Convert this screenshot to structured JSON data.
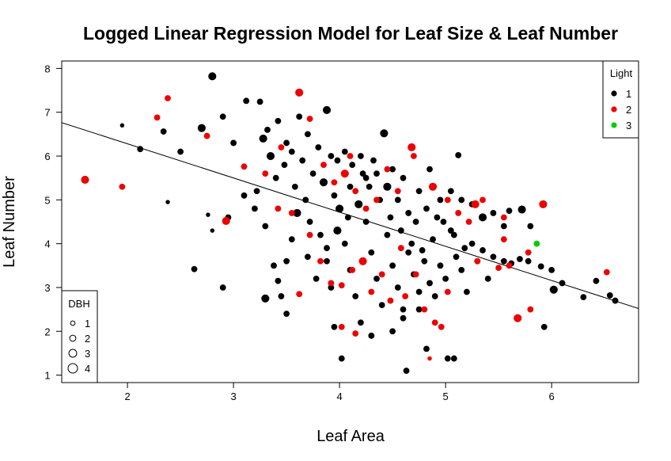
{
  "chart_data": {
    "type": "scatter",
    "title": "Logged Linear Regression Model for Leaf Size & Leaf Number",
    "xlabel": "Leaf Area",
    "ylabel": "Leaf Number",
    "xlim": [
      1.38,
      6.82
    ],
    "ylim": [
      0.83,
      8.17
    ],
    "x_ticks": [
      "2",
      "3",
      "4",
      "5",
      "6"
    ],
    "y_ticks": [
      "1",
      "2",
      "3",
      "4",
      "5",
      "6",
      "7",
      "8"
    ],
    "grid": false,
    "regression_line": {
      "intercept": 7.84,
      "slope": -0.78
    },
    "legends": [
      {
        "title": "Light",
        "placement": "top-right",
        "entries": [
          {
            "label": "1",
            "color": "#000000"
          },
          {
            "label": "2",
            "color": "#ee0000"
          },
          {
            "label": "3",
            "color": "#00cc00"
          }
        ]
      },
      {
        "title": "DBH",
        "placement": "bottom-left",
        "entries": [
          {
            "label": "1",
            "size": 1
          },
          {
            "label": "2",
            "size": 2
          },
          {
            "label": "3",
            "size": 3
          },
          {
            "label": "4",
            "size": 4
          }
        ]
      }
    ],
    "series": [
      {
        "name": "1",
        "color": "#000000",
        "points": [
          [
            2.8,
            7.82,
            3
          ],
          [
            2.12,
            6.16,
            2
          ],
          [
            2.34,
            6.56,
            2
          ],
          [
            2.7,
            6.64,
            3
          ],
          [
            2.9,
            6.9,
            2
          ],
          [
            3.0,
            6.3,
            2
          ],
          [
            3.12,
            7.26,
            2
          ],
          [
            3.25,
            7.24,
            2
          ],
          [
            3.28,
            6.4,
            3
          ],
          [
            3.35,
            6.0,
            3
          ],
          [
            3.42,
            6.8,
            2
          ],
          [
            3.5,
            6.3,
            2
          ],
          [
            3.55,
            6.1,
            2
          ],
          [
            3.62,
            6.9,
            2
          ],
          [
            3.7,
            6.5,
            2
          ],
          [
            3.8,
            6.2,
            2
          ],
          [
            3.88,
            7.05,
            3
          ],
          [
            3.92,
            6.0,
            2
          ],
          [
            3.98,
            5.9,
            2
          ],
          [
            4.05,
            6.1,
            2
          ],
          [
            4.12,
            5.8,
            2
          ],
          [
            4.2,
            6.0,
            2
          ],
          [
            4.25,
            5.5,
            2
          ],
          [
            4.35,
            5.6,
            2
          ],
          [
            4.42,
            6.52,
            3
          ],
          [
            4.5,
            5.7,
            2
          ],
          [
            4.6,
            5.5,
            2
          ],
          [
            4.75,
            5.2,
            2
          ],
          [
            4.85,
            5.7,
            2
          ],
          [
            4.95,
            5.0,
            2
          ],
          [
            5.05,
            5.2,
            2
          ],
          [
            5.15,
            5.0,
            2
          ],
          [
            5.25,
            4.9,
            2
          ],
          [
            5.35,
            4.6,
            3
          ],
          [
            5.45,
            4.7,
            2
          ],
          [
            5.55,
            4.4,
            2
          ],
          [
            5.6,
            4.75,
            2
          ],
          [
            5.72,
            4.78,
            3
          ],
          [
            5.8,
            4.4,
            2
          ],
          [
            5.35,
            3.85,
            2
          ],
          [
            5.45,
            3.7,
            2
          ],
          [
            5.55,
            3.6,
            2
          ],
          [
            5.62,
            3.55,
            2
          ],
          [
            5.7,
            3.65,
            2
          ],
          [
            5.78,
            3.6,
            2
          ],
          [
            5.9,
            3.48,
            2
          ],
          [
            6.0,
            3.4,
            2
          ],
          [
            6.02,
            2.95,
            3
          ],
          [
            6.1,
            3.1,
            2
          ],
          [
            6.3,
            2.78,
            2
          ],
          [
            6.42,
            3.15,
            2
          ],
          [
            6.55,
            2.82,
            2
          ],
          [
            6.6,
            2.7,
            2
          ],
          [
            5.93,
            2.1,
            2
          ],
          [
            5.12,
            6.02,
            2
          ],
          [
            2.38,
            4.95,
            1
          ],
          [
            2.63,
            3.42,
            2
          ],
          [
            2.76,
            4.66,
            1
          ],
          [
            2.8,
            4.3,
            1
          ],
          [
            2.9,
            3.0,
            2
          ],
          [
            2.95,
            4.6,
            2
          ],
          [
            3.1,
            5.1,
            2
          ],
          [
            3.2,
            4.8,
            2
          ],
          [
            3.3,
            4.4,
            2
          ],
          [
            3.38,
            3.5,
            2
          ],
          [
            3.42,
            3.15,
            2
          ],
          [
            3.45,
            2.8,
            2
          ],
          [
            3.5,
            2.4,
            2
          ],
          [
            3.55,
            4.1,
            2
          ],
          [
            3.6,
            4.7,
            3
          ],
          [
            3.68,
            5.0,
            2
          ],
          [
            3.72,
            4.5,
            2
          ],
          [
            3.78,
            3.2,
            2
          ],
          [
            3.82,
            4.2,
            2
          ],
          [
            3.88,
            3.6,
            2
          ],
          [
            3.92,
            3.0,
            2
          ],
          [
            4.0,
            4.8,
            3
          ],
          [
            4.05,
            4.0,
            2
          ],
          [
            4.1,
            3.4,
            2
          ],
          [
            4.15,
            2.8,
            2
          ],
          [
            4.2,
            2.2,
            2
          ],
          [
            4.25,
            4.5,
            2
          ],
          [
            4.3,
            3.8,
            2
          ],
          [
            4.35,
            3.2,
            2
          ],
          [
            4.4,
            2.6,
            2
          ],
          [
            4.45,
            4.2,
            2
          ],
          [
            4.5,
            3.5,
            2
          ],
          [
            4.55,
            3.0,
            2
          ],
          [
            4.6,
            2.5,
            2
          ],
          [
            4.65,
            3.8,
            2
          ],
          [
            4.7,
            3.3,
            2
          ],
          [
            4.75,
            2.9,
            2
          ],
          [
            4.8,
            3.6,
            2
          ],
          [
            4.85,
            3.1,
            2
          ],
          [
            4.9,
            2.8,
            2
          ],
          [
            4.95,
            3.5,
            2
          ],
          [
            5.0,
            3.2,
            2
          ],
          [
            5.05,
            4.3,
            2
          ],
          [
            5.1,
            3.7,
            2
          ],
          [
            5.15,
            3.4,
            2
          ],
          [
            5.2,
            2.9,
            2
          ],
          [
            5.25,
            4.0,
            2
          ],
          [
            5.3,
            3.6,
            2
          ],
          [
            5.4,
            3.2,
            2
          ],
          [
            4.02,
            1.38,
            2
          ],
          [
            4.63,
            1.1,
            2
          ],
          [
            4.82,
            1.6,
            2
          ],
          [
            5.02,
            1.38,
            2
          ],
          [
            5.08,
            1.38,
            2
          ],
          [
            4.3,
            1.9,
            2
          ],
          [
            4.5,
            2.0,
            2
          ],
          [
            4.6,
            2.3,
            2
          ],
          [
            4.75,
            2.5,
            2
          ],
          [
            3.95,
            2.1,
            2
          ],
          [
            3.3,
            2.75,
            3
          ],
          [
            3.5,
            3.6,
            2
          ],
          [
            3.7,
            3.7,
            2
          ],
          [
            3.88,
            3.9,
            2
          ],
          [
            3.98,
            4.3,
            3
          ],
          [
            4.08,
            4.6,
            2
          ],
          [
            4.18,
            4.9,
            3
          ],
          [
            4.28,
            5.3,
            2
          ],
          [
            4.38,
            5.0,
            2
          ],
          [
            4.48,
            4.6,
            2
          ],
          [
            4.58,
            4.3,
            2
          ],
          [
            4.68,
            4.0,
            2
          ],
          [
            4.78,
            3.85,
            2
          ],
          [
            4.88,
            4.1,
            2
          ],
          [
            4.98,
            4.5,
            2
          ],
          [
            5.08,
            4.2,
            2
          ],
          [
            5.18,
            3.9,
            2
          ],
          [
            3.4,
            5.5,
            2
          ],
          [
            3.48,
            5.8,
            2
          ],
          [
            3.58,
            5.3,
            2
          ],
          [
            3.65,
            5.9,
            2
          ],
          [
            3.75,
            5.6,
            2
          ],
          [
            3.85,
            5.4,
            3
          ],
          [
            3.95,
            5.1,
            2
          ],
          [
            4.1,
            5.3,
            2
          ],
          [
            4.22,
            5.6,
            2
          ],
          [
            4.32,
            5.9,
            2
          ],
          [
            4.45,
            5.3,
            3
          ],
          [
            4.55,
            5.0,
            2
          ],
          [
            4.65,
            4.7,
            2
          ],
          [
            4.72,
            4.5,
            2
          ],
          [
            4.82,
            4.8,
            2
          ],
          [
            4.92,
            4.6,
            2
          ],
          [
            3.22,
            5.2,
            2
          ],
          [
            3.32,
            6.6,
            2
          ],
          [
            2.5,
            6.1,
            2
          ],
          [
            1.95,
            6.7,
            1
          ]
        ]
      },
      {
        "name": "2",
        "color": "#ee0000",
        "points": [
          [
            1.6,
            5.46,
            3
          ],
          [
            1.95,
            5.3,
            2
          ],
          [
            2.28,
            6.88,
            2
          ],
          [
            2.38,
            7.32,
            2
          ],
          [
            2.75,
            6.46,
            2
          ],
          [
            2.93,
            4.52,
            3
          ],
          [
            3.1,
            5.76,
            2
          ],
          [
            3.3,
            5.6,
            2
          ],
          [
            3.45,
            6.2,
            2
          ],
          [
            3.62,
            7.45,
            3
          ],
          [
            3.72,
            6.85,
            2
          ],
          [
            3.85,
            5.8,
            2
          ],
          [
            3.95,
            5.4,
            2
          ],
          [
            4.05,
            5.6,
            3
          ],
          [
            4.1,
            6.0,
            2
          ],
          [
            4.15,
            5.2,
            2
          ],
          [
            4.25,
            4.8,
            2
          ],
          [
            4.35,
            5.0,
            2
          ],
          [
            4.45,
            5.7,
            2
          ],
          [
            4.55,
            5.2,
            2
          ],
          [
            4.68,
            6.2,
            3
          ],
          [
            4.7,
            6.0,
            2
          ],
          [
            4.88,
            5.3,
            3
          ],
          [
            5.02,
            5.0,
            2
          ],
          [
            5.12,
            4.7,
            2
          ],
          [
            5.22,
            4.5,
            2
          ],
          [
            5.28,
            4.9,
            3
          ],
          [
            5.35,
            5.0,
            2
          ],
          [
            5.55,
            4.6,
            2
          ],
          [
            5.55,
            4.1,
            2
          ],
          [
            5.78,
            3.8,
            2
          ],
          [
            5.92,
            4.9,
            3
          ],
          [
            5.3,
            3.6,
            2
          ],
          [
            5.5,
            3.45,
            2
          ],
          [
            5.6,
            3.5,
            2
          ],
          [
            5.68,
            2.3,
            3
          ],
          [
            5.8,
            2.5,
            2
          ],
          [
            6.52,
            3.35,
            2
          ],
          [
            3.55,
            4.7,
            2
          ],
          [
            3.72,
            4.2,
            2
          ],
          [
            3.82,
            3.6,
            2
          ],
          [
            3.92,
            3.1,
            2
          ],
          [
            4.02,
            3.05,
            2
          ],
          [
            4.12,
            3.4,
            2
          ],
          [
            4.22,
            3.6,
            3
          ],
          [
            4.3,
            2.9,
            2
          ],
          [
            4.4,
            3.3,
            2
          ],
          [
            4.48,
            2.7,
            2
          ],
          [
            4.58,
            3.9,
            2
          ],
          [
            4.62,
            2.8,
            2
          ],
          [
            4.72,
            3.3,
            2
          ],
          [
            4.8,
            2.5,
            2
          ],
          [
            4.9,
            2.2,
            2
          ],
          [
            4.96,
            2.1,
            2
          ],
          [
            5.02,
            2.9,
            2
          ],
          [
            4.85,
            1.38,
            1
          ],
          [
            4.02,
            2.1,
            2
          ],
          [
            4.15,
            1.95,
            2
          ],
          [
            3.62,
            2.85,
            2
          ],
          [
            3.42,
            4.8,
            2
          ]
        ]
      },
      {
        "name": "3",
        "color": "#00cc00",
        "points": [
          [
            5.86,
            4.0,
            2
          ]
        ]
      }
    ]
  }
}
